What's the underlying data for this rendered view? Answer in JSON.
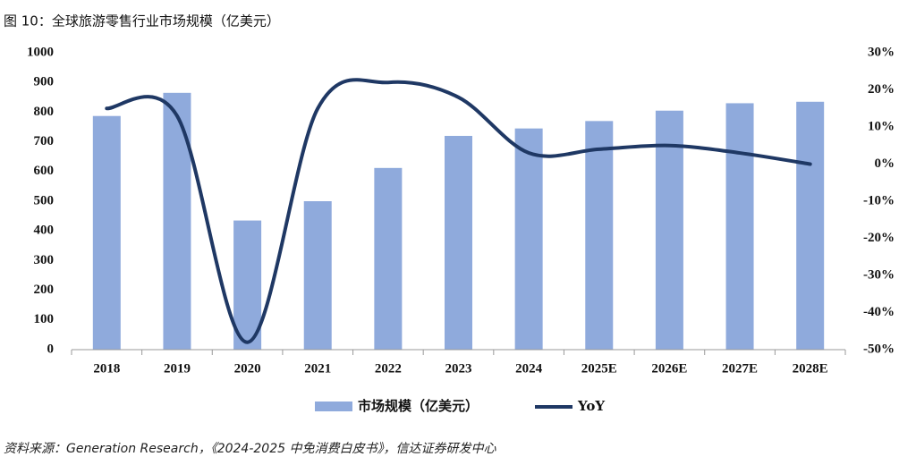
{
  "chart_data": {
    "type": "bar-line",
    "title": "图 10：全球旅游零售行业市场规模（亿美元）",
    "source": "资料来源：Generation Research，《2024-2025 中免消费白皮书》，信达证券研发中心",
    "categories": [
      "2018",
      "2019",
      "2020",
      "2021",
      "2022",
      "2023",
      "2024",
      "2025E",
      "2026E",
      "2027E",
      "2028E"
    ],
    "series": [
      {
        "name": "市场规模（亿美元）",
        "color": "#8faadc",
        "values": [
          787,
          865,
          435,
          500,
          612,
          720,
          745,
          770,
          805,
          830,
          835
        ]
      },
      {
        "name": "YoY",
        "color": "#1f3864",
        "axis": "y2",
        "values": [
          15,
          13,
          -48,
          15,
          22,
          18,
          3,
          4,
          5,
          3,
          0
        ]
      }
    ],
    "ylim": [
      0,
      1000
    ],
    "yticks": [
      0,
      100,
      200,
      300,
      400,
      500,
      600,
      700,
      800,
      900,
      1000
    ],
    "y2lim": [
      -50,
      30
    ],
    "y2ticks": [
      {
        "value": -50,
        "label": "-50%"
      },
      {
        "value": -40,
        "label": "-40%"
      },
      {
        "value": -30,
        "label": "-30%"
      },
      {
        "value": -20,
        "label": "-20%"
      },
      {
        "value": -10,
        "label": "-10%"
      },
      {
        "value": 0,
        "label": "0%"
      },
      {
        "value": 10,
        "label": "10%"
      },
      {
        "value": 20,
        "label": "20%"
      },
      {
        "value": 30,
        "label": "30%"
      }
    ],
    "legend": "bottom"
  }
}
